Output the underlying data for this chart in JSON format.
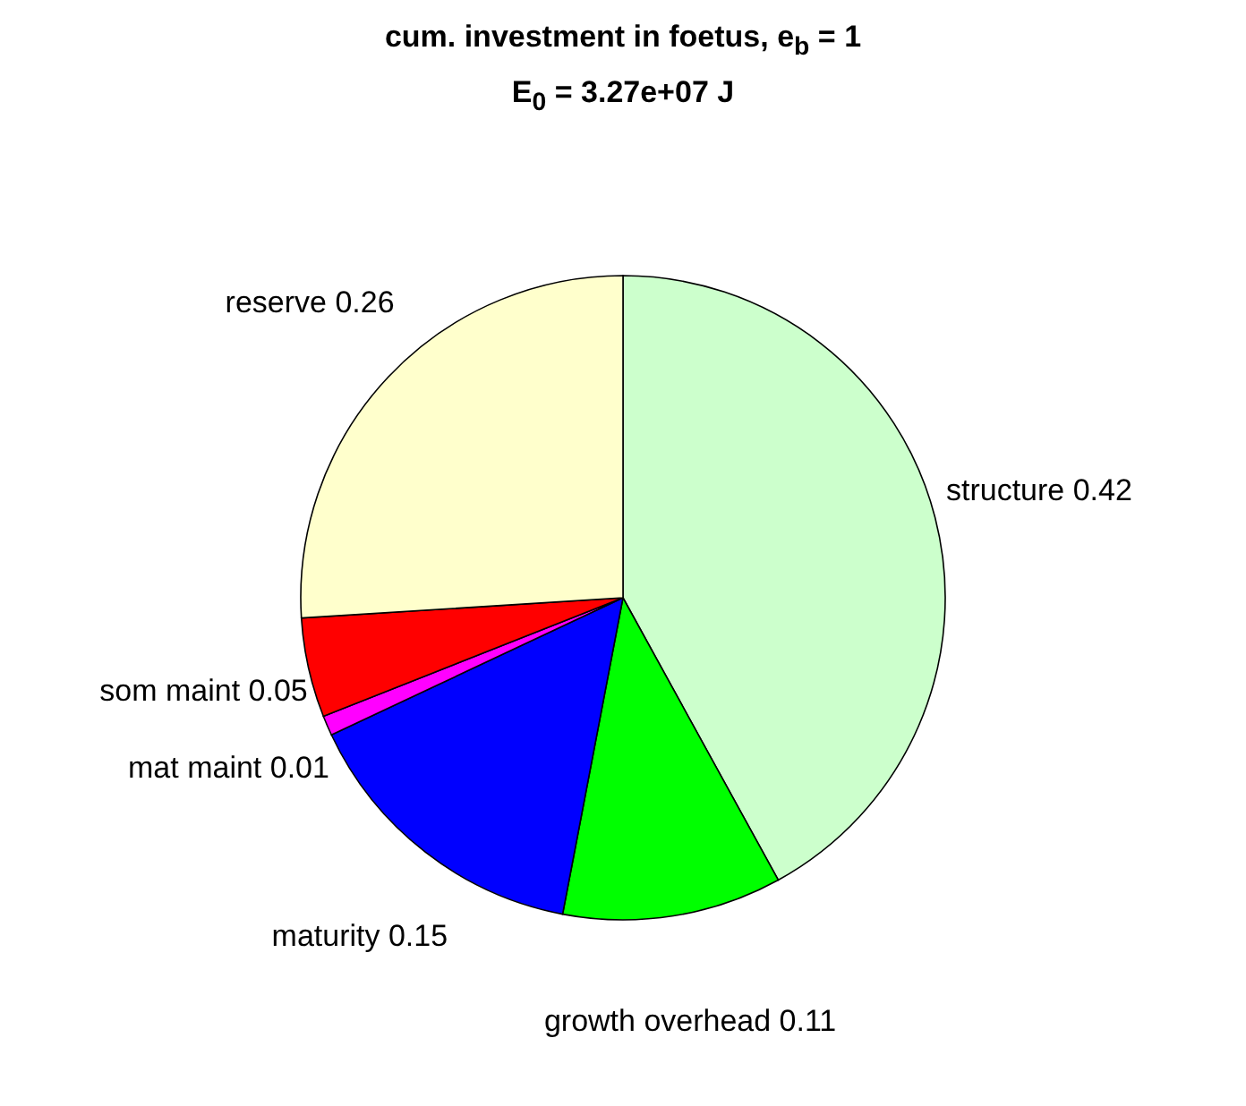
{
  "chart_data": {
    "type": "pie",
    "title": "cum. investment in foetus, e$_{b}$ = 1",
    "subtitle": "E$_{0}$ = 3.27e+07 J",
    "categories": [
      "structure 0.42",
      "growth overhead 0.11",
      "maturity 0.15",
      "mat maint 0.01",
      "som maint 0.05",
      "reserve 0.26"
    ],
    "values": [
      0.42,
      0.11,
      0.15,
      0.01,
      0.05,
      0.26
    ],
    "colors": [
      "#ccffcc",
      "#00ff00",
      "#0000ff",
      "#ff00ff",
      "#ff0000",
      "#ffffcc"
    ],
    "data_labels": false
  }
}
